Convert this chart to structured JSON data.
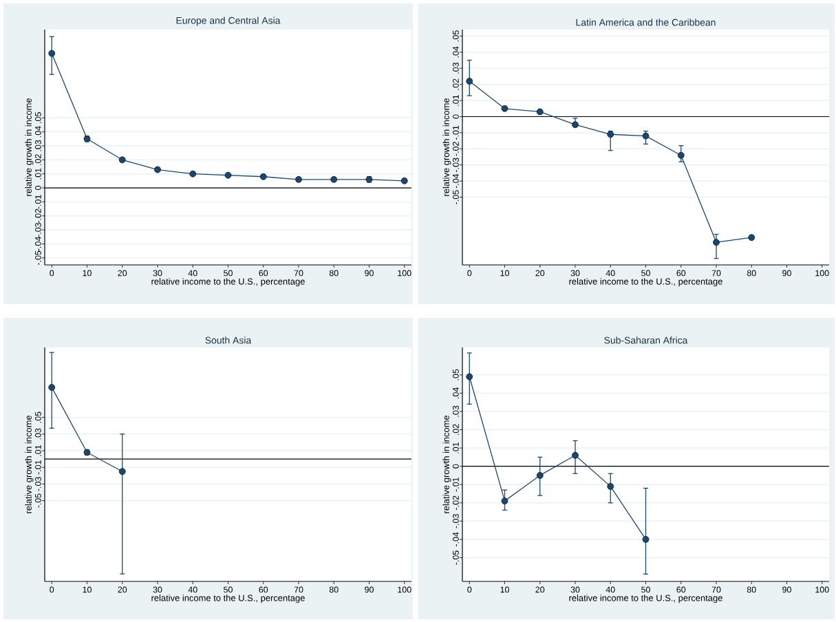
{
  "chart_data": [
    {
      "type": "line",
      "title": "Europe and Central Asia",
      "xlabel": "relative income to the U.S., percentage",
      "ylabel": "relative growth in income",
      "color": "#1a476f",
      "marker": "circle",
      "grid": "y",
      "x": [
        0,
        10,
        20,
        30,
        40,
        50,
        60,
        70,
        80,
        90,
        100
      ],
      "values": [
        0.096,
        0.035,
        0.02,
        0.013,
        0.01,
        0.009,
        0.008,
        0.006,
        0.006,
        0.006,
        0.005
      ],
      "errors": [
        [
          0.081,
          0.108
        ],
        0.002,
        null,
        0.001,
        null,
        null,
        null,
        null,
        0.001,
        0.002,
        null
      ],
      "xlim": [
        -2,
        102
      ],
      "xticks": [
        0,
        10,
        20,
        30,
        40,
        50,
        60,
        70,
        80,
        90,
        100
      ],
      "ylim": [
        -0.055,
        0.113
      ],
      "yticks": [
        {
          "value": -0.05,
          "label": "-.05"
        },
        {
          "value": -0.04,
          "label": "-.04"
        },
        {
          "value": -0.03,
          "label": "-.03"
        },
        {
          "value": -0.02,
          "label": "-.02"
        },
        {
          "value": -0.01,
          "label": "-.01"
        },
        0,
        {
          "value": 0.01,
          "label": ".01"
        },
        {
          "value": 0.02,
          "label": ".02"
        },
        {
          "value": 0.03,
          "label": ".03"
        },
        {
          "value": 0.04,
          "label": ".04"
        },
        {
          "value": 0.05,
          "label": ".05"
        }
      ],
      "ref_lines": [
        {
          "axis": "y",
          "value": 0,
          "color": "#000000"
        }
      ]
    },
    {
      "type": "line",
      "title": "Latin America and the Caribbean",
      "xlabel": "relative income to the U.S., percentage",
      "ylabel": "relative growth in income",
      "color": "#1a476f",
      "marker": "circle",
      "grid": "y",
      "x": [
        0,
        10,
        20,
        30,
        40,
        50,
        60,
        70,
        80
      ],
      "values": [
        0.022,
        0.005,
        0.003,
        -0.005,
        -0.011,
        -0.012,
        -0.024,
        -0.078,
        -0.075
      ],
      "errors": [
        [
          0.013,
          0.035
        ],
        null,
        null,
        [
          -0.006,
          -0.001
        ],
        [
          -0.021,
          -0.009
        ],
        [
          -0.017,
          -0.009
        ],
        [
          -0.028,
          -0.018
        ],
        [
          -0.088,
          -0.073
        ],
        null
      ],
      "xlim": [
        -2,
        102
      ],
      "xticks": [
        0,
        10,
        20,
        30,
        40,
        50,
        60,
        70,
        80,
        90,
        100
      ],
      "ylim": [
        -0.092,
        0.054
      ],
      "yticks": [
        {
          "value": -0.05,
          "label": "-.05"
        },
        {
          "value": -0.04,
          "label": "-.04"
        },
        {
          "value": -0.03,
          "label": "-.03"
        },
        {
          "value": -0.02,
          "label": "-.02"
        },
        {
          "value": -0.01,
          "label": "-.01"
        },
        0,
        {
          "value": 0.01,
          "label": ".01"
        },
        {
          "value": 0.02,
          "label": ".02"
        },
        {
          "value": 0.03,
          "label": ".03"
        },
        {
          "value": 0.04,
          "label": ".04"
        },
        {
          "value": 0.05,
          "label": ".05"
        }
      ],
      "ref_lines": [
        {
          "axis": "y",
          "value": 0,
          "color": "#000000"
        }
      ]
    },
    {
      "type": "line",
      "title": "South Asia",
      "xlabel": "relative income to the U.S., percentage",
      "ylabel": "relative growth in income",
      "color": "#1a476f",
      "marker": "circle",
      "grid": "y",
      "x": [
        0,
        10,
        20
      ],
      "values": [
        0.086,
        0.008,
        -0.015
      ],
      "errors": [
        [
          0.037,
          0.128
        ],
        0.003,
        [
          -0.138,
          0.03
        ]
      ],
      "xlim": [
        -2,
        102
      ],
      "xticks": [
        0,
        10,
        20,
        30,
        40,
        50,
        60,
        70,
        80,
        90,
        100
      ],
      "ylim": [
        -0.147,
        0.134
      ],
      "yticks": [
        {
          "value": -0.05,
          "label": "-.05"
        },
        {
          "value": -0.03,
          "label": "-.03"
        },
        {
          "value": -0.01,
          "label": "-.01"
        },
        {
          "value": 0.01,
          "label": ".01"
        },
        {
          "value": 0.03,
          "label": ".03"
        },
        {
          "value": 0.05,
          "label": ".05"
        }
      ],
      "ref_lines": [
        {
          "axis": "y",
          "value": 0,
          "color": "#000000"
        }
      ]
    },
    {
      "type": "line",
      "title": "Sub-Saharan Africa",
      "xlabel": "relative income to the U.S., percentage",
      "ylabel": "relative growth in income",
      "color": "#1a476f",
      "marker": "circle",
      "grid": "y",
      "x": [
        0,
        10,
        20,
        30,
        40,
        50
      ],
      "values": [
        0.049,
        -0.019,
        -0.005,
        0.006,
        -0.011,
        -0.04
      ],
      "errors": [
        [
          0.034,
          0.062
        ],
        [
          -0.024,
          -0.013
        ],
        [
          -0.016,
          0.005
        ],
        [
          -0.004,
          0.014
        ],
        [
          -0.02,
          -0.004
        ],
        [
          -0.059,
          -0.012
        ]
      ],
      "xlim": [
        -2,
        102
      ],
      "xticks": [
        0,
        10,
        20,
        30,
        40,
        50,
        60,
        70,
        80,
        90,
        100
      ],
      "ylim": [
        -0.063,
        0.065
      ],
      "yticks": [
        {
          "value": -0.05,
          "label": "-.05"
        },
        {
          "value": -0.04,
          "label": "-.04"
        },
        {
          "value": -0.03,
          "label": "-.03"
        },
        {
          "value": -0.02,
          "label": "-.02"
        },
        {
          "value": -0.01,
          "label": "-.01"
        },
        0,
        {
          "value": 0.01,
          "label": ".01"
        },
        {
          "value": 0.02,
          "label": ".02"
        },
        {
          "value": 0.03,
          "label": ".03"
        },
        {
          "value": 0.04,
          "label": ".04"
        },
        {
          "value": 0.05,
          "label": ".05"
        }
      ],
      "ref_lines": [
        {
          "axis": "y",
          "value": 0,
          "color": "#000000"
        }
      ]
    }
  ]
}
